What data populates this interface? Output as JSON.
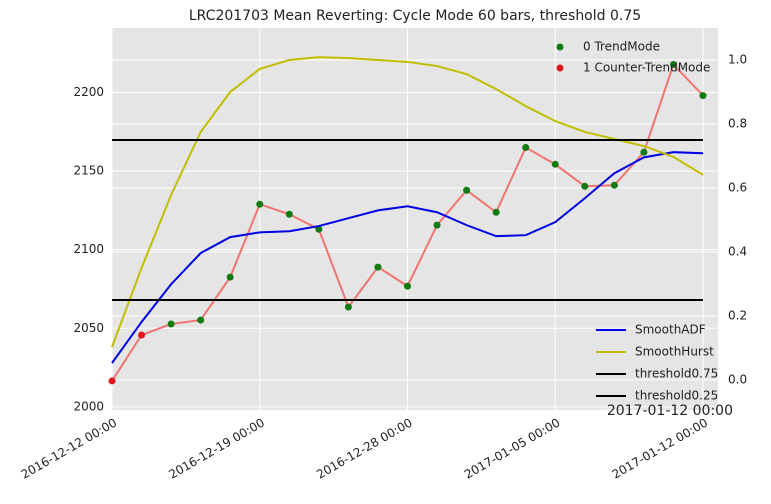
{
  "chart_data": {
    "type": "line",
    "title": "LRC201703 Mean Reverting: Cycle Mode 60 bars, threshold 0.75",
    "annotation": "2017-01-12 00:00",
    "categories": [
      "2016-12-12 00:00",
      null,
      null,
      null,
      null,
      "2016-12-19 00:00",
      null,
      null,
      null,
      null,
      "2016-12-28 00:00",
      null,
      null,
      null,
      null,
      "2017-01-05 00:00",
      null,
      null,
      null,
      null,
      "2017-01-12 00:00"
    ],
    "ylim": [
      1998,
      2241
    ],
    "yticks": [
      2000,
      2050,
      2100,
      2150,
      2200
    ],
    "y2lim": [
      -0.094,
      1.1
    ],
    "y2ticks": [
      {
        "value": 0,
        "label": "0.0"
      },
      {
        "value": 0.2,
        "label": "0.2"
      },
      {
        "value": 0.4,
        "label": "0.4"
      },
      {
        "value": 0.6,
        "label": "0.6"
      },
      {
        "value": 0.8,
        "label": "0.8"
      },
      {
        "value": 1,
        "label": "1.0"
      }
    ],
    "grid": true,
    "background": "#e5e5e5",
    "series": [
      {
        "type": "line",
        "color": "#f07470",
        "values": [
          2016.5,
          2045.7,
          2052.7,
          2055.2,
          2082.5,
          2128.9,
          2122.5,
          2113,
          2063.5,
          2088.9,
          2076.8,
          2115.6,
          2137.8,
          2123.8,
          2165,
          2154.3,
          2140.3,
          2141,
          2162,
          2217.8,
          2198
        ]
      },
      {
        "type": "scatter",
        "name": "0 TrendMode",
        "color": "#117a11",
        "legend": "upper right",
        "values": [
          null,
          null,
          2052.7,
          2055.2,
          2082.5,
          2128.9,
          2122.5,
          2113,
          2063.5,
          2088.9,
          2076.8,
          2115.6,
          2137.8,
          2123.8,
          2165,
          2154.3,
          2140.3,
          2141,
          2162,
          2217.8,
          2198
        ]
      },
      {
        "type": "scatter",
        "name": "1 Counter-TrendMode",
        "color": "#e8141d",
        "legend": "upper right",
        "values": [
          2016.5,
          2045.7,
          null,
          null,
          null,
          null,
          null,
          null,
          null,
          null,
          null,
          null,
          null,
          null,
          null,
          null,
          null,
          null,
          null,
          null,
          null
        ]
      },
      {
        "type": "line",
        "name": "SmoothADF",
        "color": "#0000e6",
        "legend": "lower right",
        "values": [
          2027.9,
          2054,
          2078,
          2097.8,
          2108,
          2111,
          2111.7,
          2115,
          2120,
          2125,
          2127.6,
          2123.8,
          2115.6,
          2108.6,
          2109.2,
          2117.5,
          2132.7,
          2148.6,
          2158.7,
          2162,
          2161.3
        ]
      },
      {
        "type": "line",
        "name": "SmoothHurst",
        "color": "#bfbf00",
        "legend": "lower right",
        "axis": "y2",
        "values": [
          0.103,
          0.35,
          0.578,
          0.775,
          0.9,
          0.972,
          1.0,
          1.009,
          1.006,
          1.0,
          0.994,
          0.981,
          0.956,
          0.909,
          0.856,
          0.809,
          0.775,
          0.753,
          0.731,
          0.697,
          0.641
        ]
      },
      {
        "type": "line",
        "name": "threshold0.75",
        "color": "#000000",
        "legend": "lower right",
        "axis": "y2",
        "values": [
          0.75,
          0.75,
          0.75,
          0.75,
          0.75,
          0.75,
          0.75,
          0.75,
          0.75,
          0.75,
          0.75,
          0.75,
          0.75,
          0.75,
          0.75,
          0.75,
          0.75,
          0.75,
          0.75,
          0.75,
          0.75
        ]
      },
      {
        "type": "line",
        "name": "threshold0.25",
        "color": "#000000",
        "legend": "lower right",
        "axis": "y2",
        "values": [
          0.25,
          0.25,
          0.25,
          0.25,
          0.25,
          0.25,
          0.25,
          0.25,
          0.25,
          0.25,
          0.25,
          0.25,
          0.25,
          0.25,
          0.25,
          0.25,
          0.25,
          0.25,
          0.25,
          0.25,
          0.25
        ]
      }
    ]
  }
}
